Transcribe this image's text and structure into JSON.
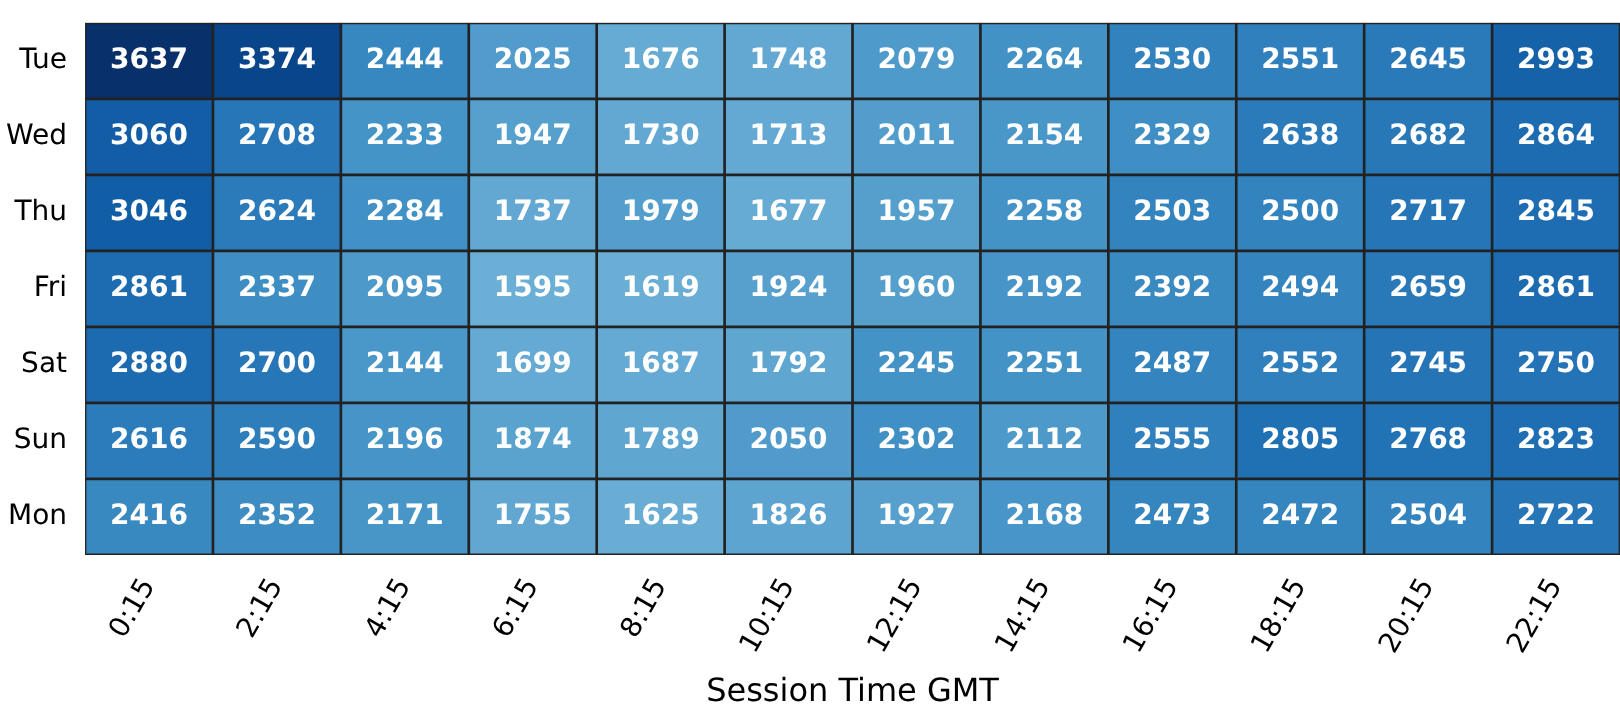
{
  "chart_data": {
    "type": "heatmap",
    "xlabel": "Session Time GMT",
    "categories": [
      "0:15",
      "2:15",
      "4:15",
      "6:15",
      "8:15",
      "10:15",
      "12:15",
      "14:15",
      "16:15",
      "18:15",
      "20:15",
      "22:15"
    ],
    "y_categories": [
      "Tue",
      "Wed",
      "Thu",
      "Fri",
      "Sat",
      "Sun",
      "Mon"
    ],
    "cells": [
      [
        3637,
        3374,
        2444,
        2025,
        1676,
        1748,
        2079,
        2264,
        2530,
        2551,
        2645,
        2993
      ],
      [
        3060,
        2708,
        2233,
        1947,
        1730,
        1713,
        2011,
        2154,
        2329,
        2638,
        2682,
        2864
      ],
      [
        3046,
        2624,
        2284,
        1737,
        1979,
        1677,
        1957,
        2258,
        2503,
        2500,
        2717,
        2845
      ],
      [
        2861,
        2337,
        2095,
        1595,
        1619,
        1924,
        1960,
        2192,
        2392,
        2494,
        2659,
        2861
      ],
      [
        2880,
        2700,
        2144,
        1699,
        1687,
        1792,
        2245,
        2251,
        2487,
        2552,
        2745,
        2750
      ],
      [
        2616,
        2590,
        2196,
        1874,
        1789,
        2050,
        2302,
        2112,
        2555,
        2805,
        2768,
        2823
      ],
      [
        2416,
        2352,
        2171,
        1755,
        1625,
        1826,
        1927,
        2168,
        2473,
        2472,
        2504,
        2722
      ]
    ],
    "data_labels": true
  }
}
